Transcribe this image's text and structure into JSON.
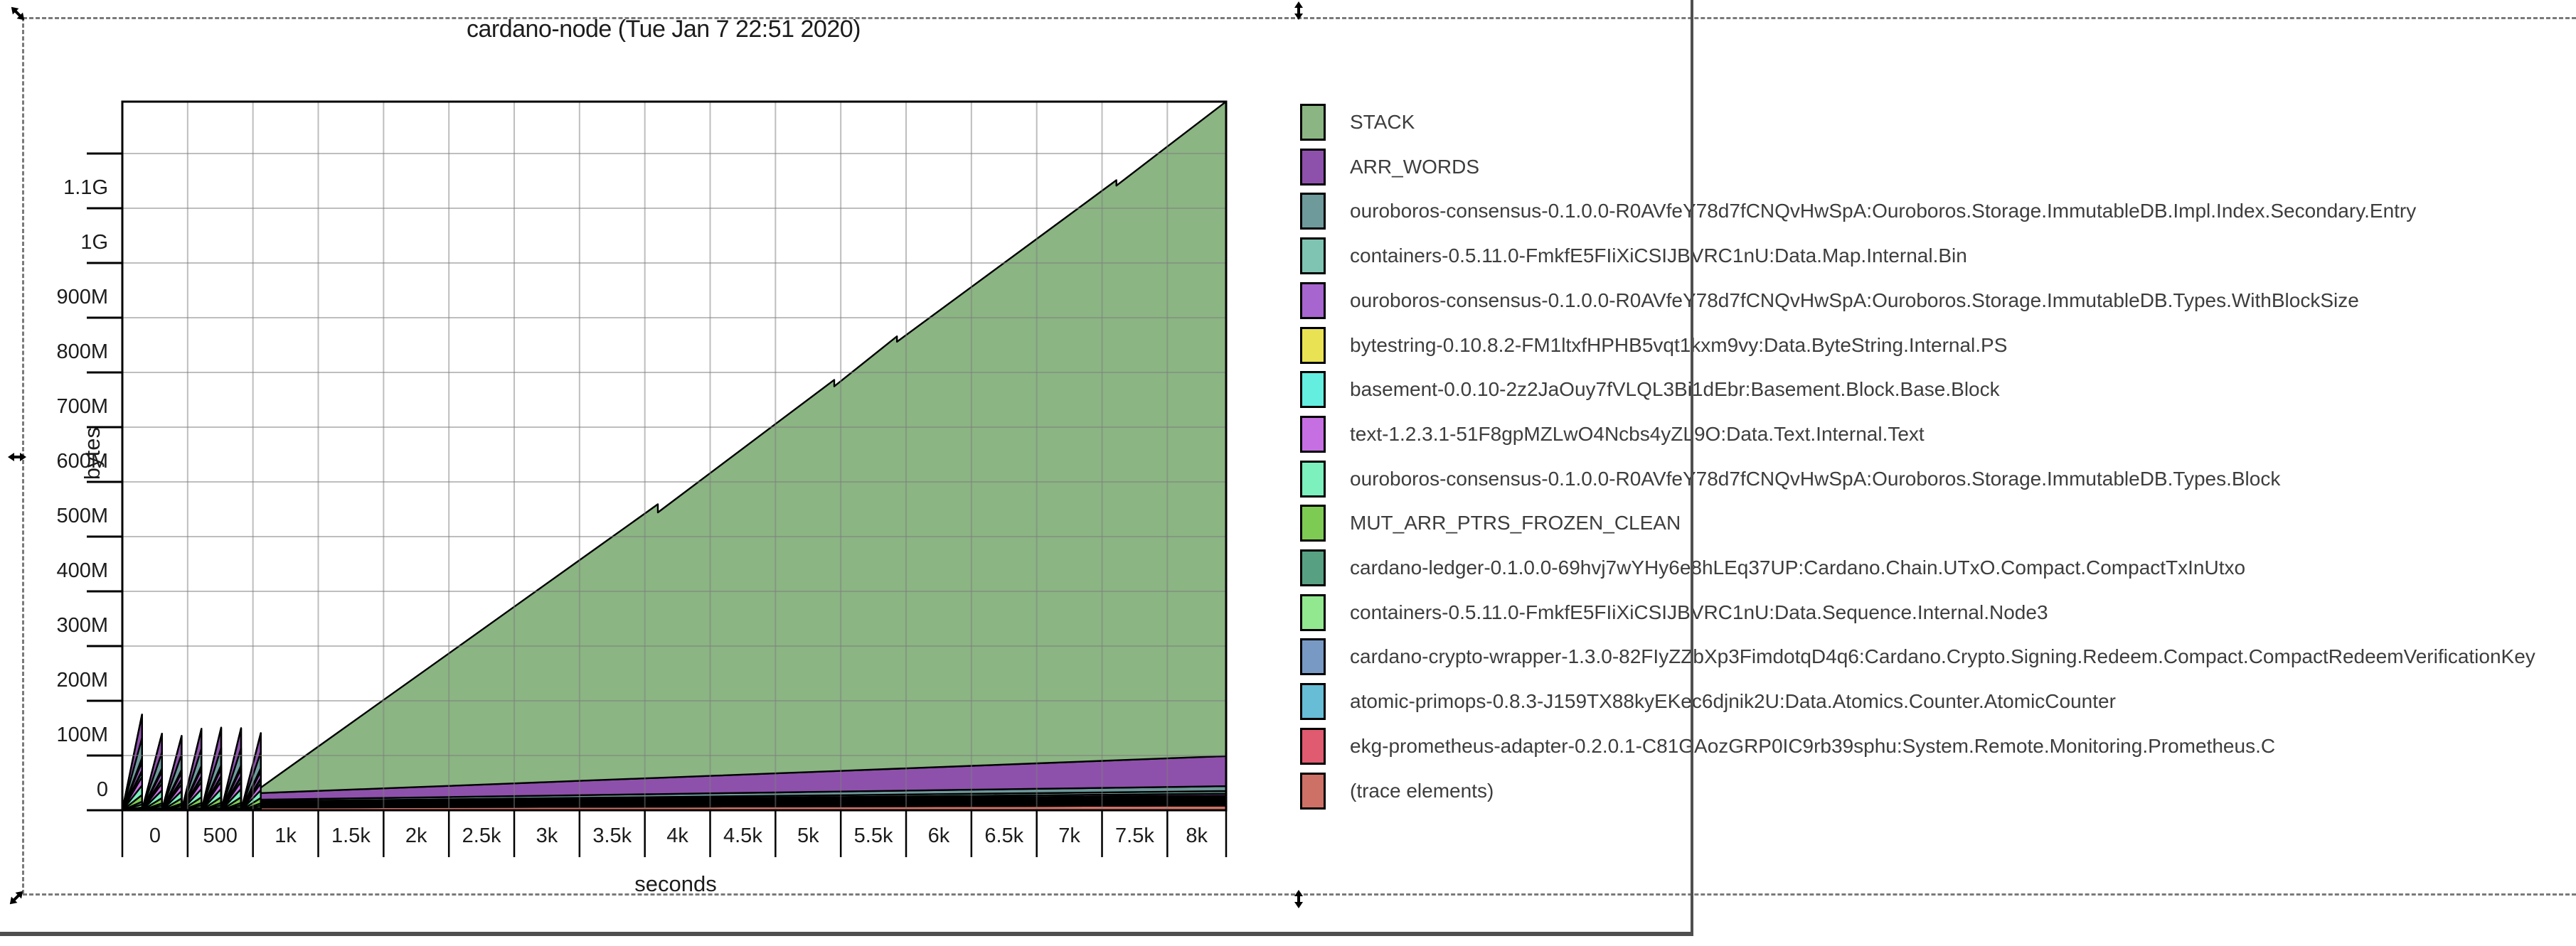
{
  "title": "cardano-node (Tue Jan 7 22:51 2020)",
  "y_axis": {
    "label": "bytes",
    "tick_labels": [
      "0",
      "100M",
      "200M",
      "300M",
      "400M",
      "500M",
      "600M",
      "700M",
      "800M",
      "900M",
      "1G",
      "1.1G"
    ]
  },
  "x_axis": {
    "label": "seconds",
    "tick_labels": [
      "0",
      "500",
      "1k",
      "1.5k",
      "2k",
      "2.5k",
      "3k",
      "3.5k",
      "4k",
      "4.5k",
      "5k",
      "5.5k",
      "6k",
      "6.5k",
      "7k",
      "7.5k",
      "8k"
    ]
  },
  "legend": {
    "items": [
      {
        "label": "STACK",
        "color": "#8bb583"
      },
      {
        "label": "ARR_WORDS",
        "color": "#8d51ab"
      },
      {
        "label": "ouroboros-consensus-0.1.0.0-R0AVfeY78d7fCNQvHwSpA:Ouroboros.Storage.ImmutableDB.Impl.Index.Secondary.Entry",
        "color": "#6e9a9c"
      },
      {
        "label": "containers-0.5.11.0-FmkfE5FIiXiCSIJBVRC1nU:Data.Map.Internal.Bin",
        "color": "#7fc4b2"
      },
      {
        "label": "ouroboros-consensus-0.1.0.0-R0AVfeY78d7fCNQvHwSpA:Ouroboros.Storage.ImmutableDB.Types.WithBlockSize",
        "color": "#a765cf"
      },
      {
        "label": "bytestring-0.10.8.2-FM1ltxfHPHB5vqt1kxm9vy:Data.ByteString.Internal.PS",
        "color": "#e9e354"
      },
      {
        "label": "basement-0.0.10-2z2JaOuy7fVLQL3Bi1dEbr:Basement.Block.Base.Block",
        "color": "#64eee0"
      },
      {
        "label": "text-1.2.3.1-51F8gpMZLwO4Ncbs4yZL9O:Data.Text.Internal.Text",
        "color": "#c66fe3"
      },
      {
        "label": "ouroboros-consensus-0.1.0.0-R0AVfeY78d7fCNQvHwSpA:Ouroboros.Storage.ImmutableDB.Types.Block",
        "color": "#7cf0bd"
      },
      {
        "label": "MUT_ARR_PTRS_FROZEN_CLEAN",
        "color": "#7ecb54"
      },
      {
        "label": "cardano-ledger-0.1.0.0-69hvj7wYHy6e8hLEq37UP:Cardano.Chain.UTxO.Compact.CompactTxInUtxo",
        "color": "#57a182"
      },
      {
        "label": "containers-0.5.11.0-FmkfE5FIiXiCSIJBVRC1nU:Data.Sequence.Internal.Node3",
        "color": "#92e88f"
      },
      {
        "label": "cardano-crypto-wrapper-1.3.0-82FIyZZbXp3FimdotqD4q6:Cardano.Crypto.Signing.Redeem.Compact.CompactRedeemVerificationKey",
        "color": "#7799c4"
      },
      {
        "label": "atomic-primops-0.8.3-J159TX88kyEKec6djnik2U:Data.Atomics.Counter.AtomicCounter",
        "color": "#67bcd6"
      },
      {
        "label": "ekg-prometheus-adapter-0.2.0.1-C81GAozGRP0IC9rb39sphu:System.Remote.Monitoring.Prometheus.C",
        "color": "#e05a70"
      },
      {
        "label": "(trace elements)",
        "color": "#cd7166"
      }
    ]
  },
  "overlay": {
    "selection_dash_color": "#7a7a7a",
    "window_border_color": "#4f4f4f"
  },
  "chart_data": {
    "type": "area",
    "stacked": true,
    "title": "cardano-node (Tue Jan 7 22:51 2020)",
    "xlabel": "seconds",
    "ylabel": "bytes",
    "x_range_seconds": [
      0,
      8450
    ],
    "y_range_bytes_M": [
      0,
      1295
    ],
    "grid": true,
    "legend_position": "right",
    "x_tick_step_seconds": 500,
    "y_tick_step_bytes_M": 100,
    "layers_bottom_to_top": [
      {
        "name": "(trace elements)",
        "color": "#cd7166"
      },
      {
        "name": "ekg-prometheus-adapter System.Remote.Monitoring.Prometheus.C",
        "color": "#e05a70"
      },
      {
        "name": "atomic-primops Data.Atomics.Counter.AtomicCounter",
        "color": "#67bcd6"
      },
      {
        "name": "cardano-crypto-wrapper CompactRedeemVerificationKey",
        "color": "#7799c4"
      },
      {
        "name": "containers Data.Sequence.Internal.Node3",
        "color": "#92e88f"
      },
      {
        "name": "cardano-ledger Cardano.Chain.UTxO.Compact.CompactTxInUtxo",
        "color": "#57a182"
      },
      {
        "name": "MUT_ARR_PTRS_FROZEN_CLEAN",
        "color": "#7ecb54"
      },
      {
        "name": "ouroboros-consensus Ouroboros.Storage.ImmutableDB.Types.Block",
        "color": "#7cf0bd"
      },
      {
        "name": "text Data.Text.Internal.Text",
        "color": "#c66fe3"
      },
      {
        "name": "basement Basement.Block.Base.Block",
        "color": "#64eee0"
      },
      {
        "name": "bytestring Data.ByteString.Internal.PS",
        "color": "#e9e354"
      },
      {
        "name": "ouroboros-consensus ImmutableDB.Types.WithBlockSize",
        "color": "#a765cf"
      },
      {
        "name": "containers Data.Map.Internal.Bin",
        "color": "#7fc4b2"
      },
      {
        "name": "ouroboros-consensus ImmutableDB.Impl.Index.Secondary.Entry",
        "color": "#6e9a9c"
      },
      {
        "name": "ARR_WORDS",
        "color": "#8d51ab"
      },
      {
        "name": "STACK",
        "color": "#8bb583"
      }
    ],
    "phase1_sawtooth": {
      "t_range_seconds": [
        0,
        1060
      ],
      "peaks_t_start_t_end_height_M": [
        [
          0,
          151,
          175
        ],
        [
          151,
          303,
          140
        ],
        [
          303,
          454,
          136
        ],
        [
          454,
          606,
          149
        ],
        [
          606,
          757,
          151
        ],
        [
          757,
          909,
          150
        ],
        [
          909,
          1060,
          141
        ]
      ],
      "layer_fractions_bottom_to_top": [
        0.008,
        0.006,
        0.006,
        0.01,
        0.03,
        0.03,
        0.07,
        0.1,
        0.09,
        0.05,
        0.016,
        0.09,
        0.04,
        0.21,
        0.244,
        0.0
      ]
    },
    "phase2_growth": {
      "t_range_seconds": [
        1060,
        8450
      ],
      "layer_values_M_start_end_bottom_to_top": [
        [
          5.0,
          8.5
        ],
        [
          0.5,
          0.8
        ],
        [
          0.4,
          0.7
        ],
        [
          0.6,
          1.0
        ],
        [
          0.8,
          1.6
        ],
        [
          0.8,
          1.6
        ],
        [
          1.0,
          2.2
        ],
        [
          1.2,
          2.8
        ],
        [
          1.0,
          2.4
        ],
        [
          0.8,
          2.0
        ],
        [
          1.3,
          3.2
        ],
        [
          1.4,
          3.6
        ],
        [
          1.6,
          4.6
        ],
        [
          3.0,
          9.0
        ],
        [
          12.0,
          55.0
        ]
      ],
      "stack_top_profile_t_M": [
        [
          1060,
          10
        ],
        [
          4100,
          500
        ],
        [
          4100.01,
          485
        ],
        [
          5450,
          715
        ],
        [
          5450.01,
          703
        ],
        [
          5930,
          790
        ],
        [
          5930.01,
          780
        ],
        [
          7610,
          1060
        ],
        [
          7610.01,
          1050
        ],
        [
          8450,
          1196
        ]
      ]
    }
  }
}
